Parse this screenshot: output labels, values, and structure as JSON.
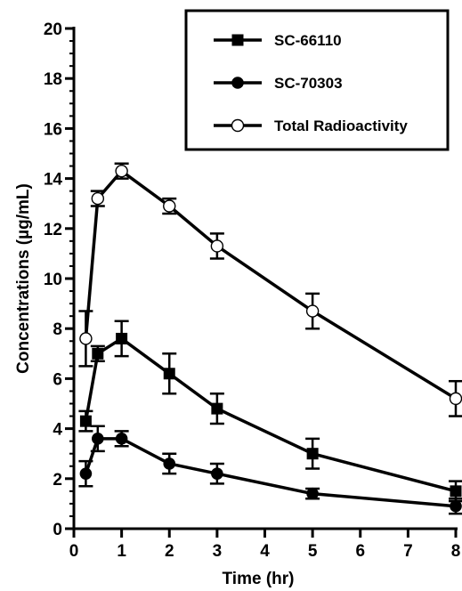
{
  "chart_data": {
    "type": "line",
    "xlabel": "Time (hr)",
    "ylabel": "Concentrations (µg/mL)",
    "xlim": [
      0,
      8
    ],
    "ylim": [
      0,
      20
    ],
    "x_ticks": [
      "0",
      "1",
      "2",
      "3",
      "4",
      "5",
      "6",
      "7",
      "8"
    ],
    "y_ticks": [
      "0",
      "2",
      "4",
      "6",
      "8",
      "10",
      "12",
      "14",
      "16",
      "18",
      "20"
    ],
    "grid": false,
    "legend_position": "top-right",
    "x": [
      0.25,
      0.5,
      1,
      2,
      3,
      5,
      8
    ],
    "series": [
      {
        "name": "SC-66110",
        "marker": "filled-square",
        "values": [
          4.3,
          7.0,
          7.6,
          6.2,
          4.8,
          3.0,
          1.5
        ],
        "errors": [
          0.4,
          0.3,
          0.7,
          0.8,
          0.6,
          0.6,
          0.4
        ]
      },
      {
        "name": "SC-70303",
        "marker": "filled-circle",
        "values": [
          2.2,
          3.6,
          3.6,
          2.6,
          2.2,
          1.4,
          0.9
        ],
        "errors": [
          0.5,
          0.5,
          0.3,
          0.4,
          0.4,
          0.2,
          0.3
        ]
      },
      {
        "name": "Total Radioactivity",
        "marker": "open-circle",
        "values": [
          7.6,
          13.2,
          14.3,
          12.9,
          11.3,
          8.7,
          5.2
        ],
        "errors": [
          1.1,
          0.3,
          0.3,
          0.3,
          0.5,
          0.7,
          0.7
        ]
      }
    ]
  }
}
